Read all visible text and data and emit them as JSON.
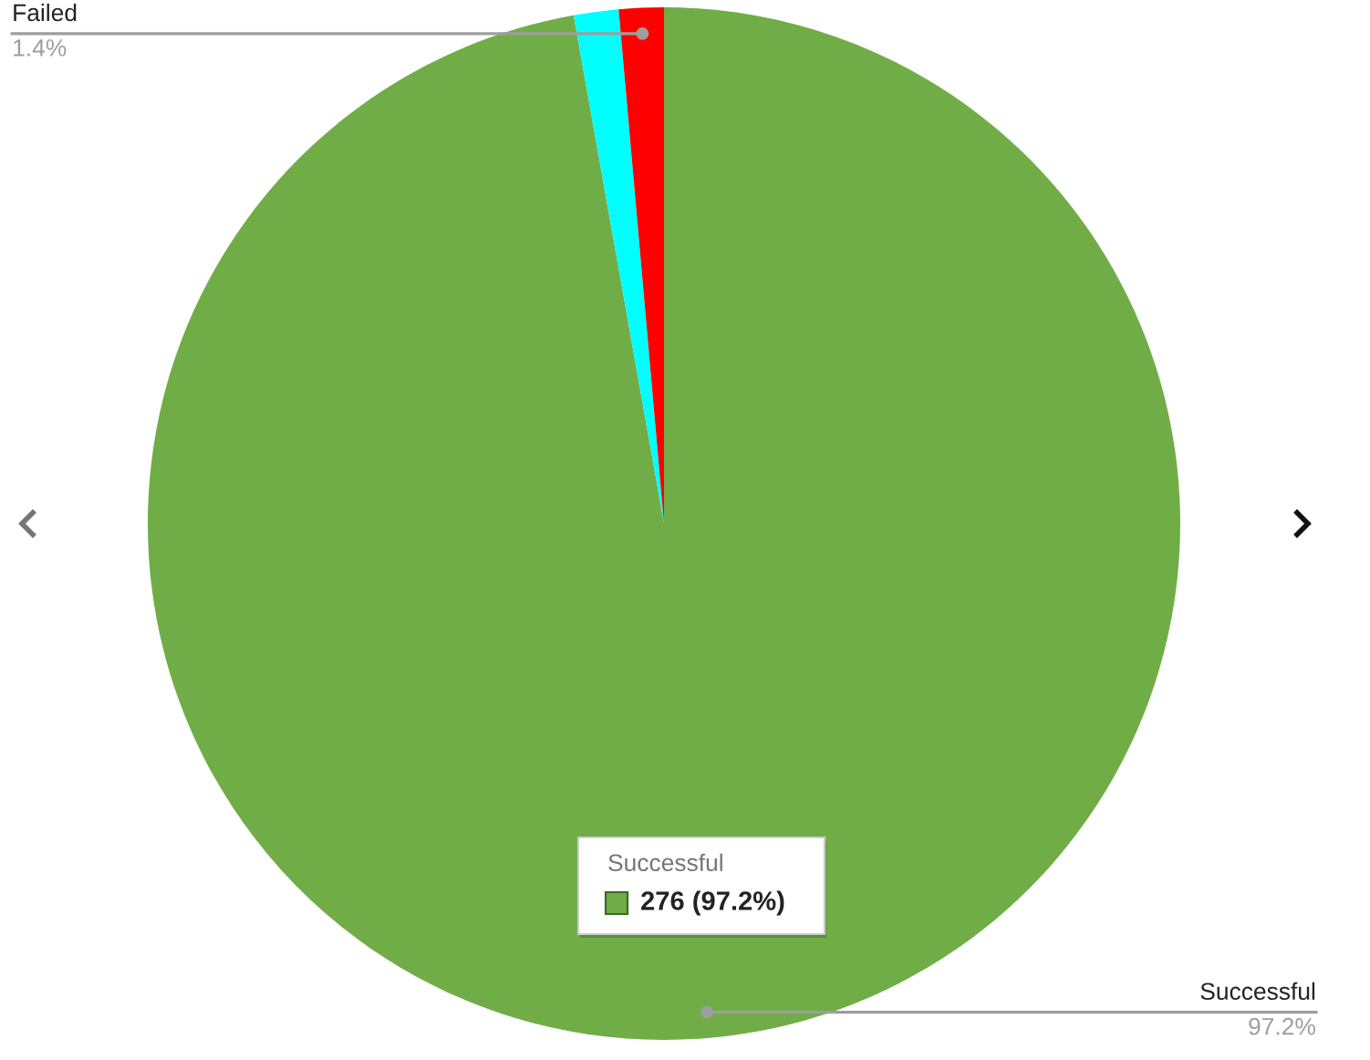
{
  "chart_data": {
    "type": "pie",
    "categories": [
      "Successful",
      null,
      "Failed"
    ],
    "values": [
      97.2,
      1.4,
      1.4
    ],
    "colors": [
      "#70ad47",
      "#00ffff",
      "#ff0000"
    ],
    "value_labels": [
      "97.2%",
      null,
      "1.4%"
    ],
    "annotations": [
      "Successful",
      "276 (97.2%)"
    ]
  }
}
